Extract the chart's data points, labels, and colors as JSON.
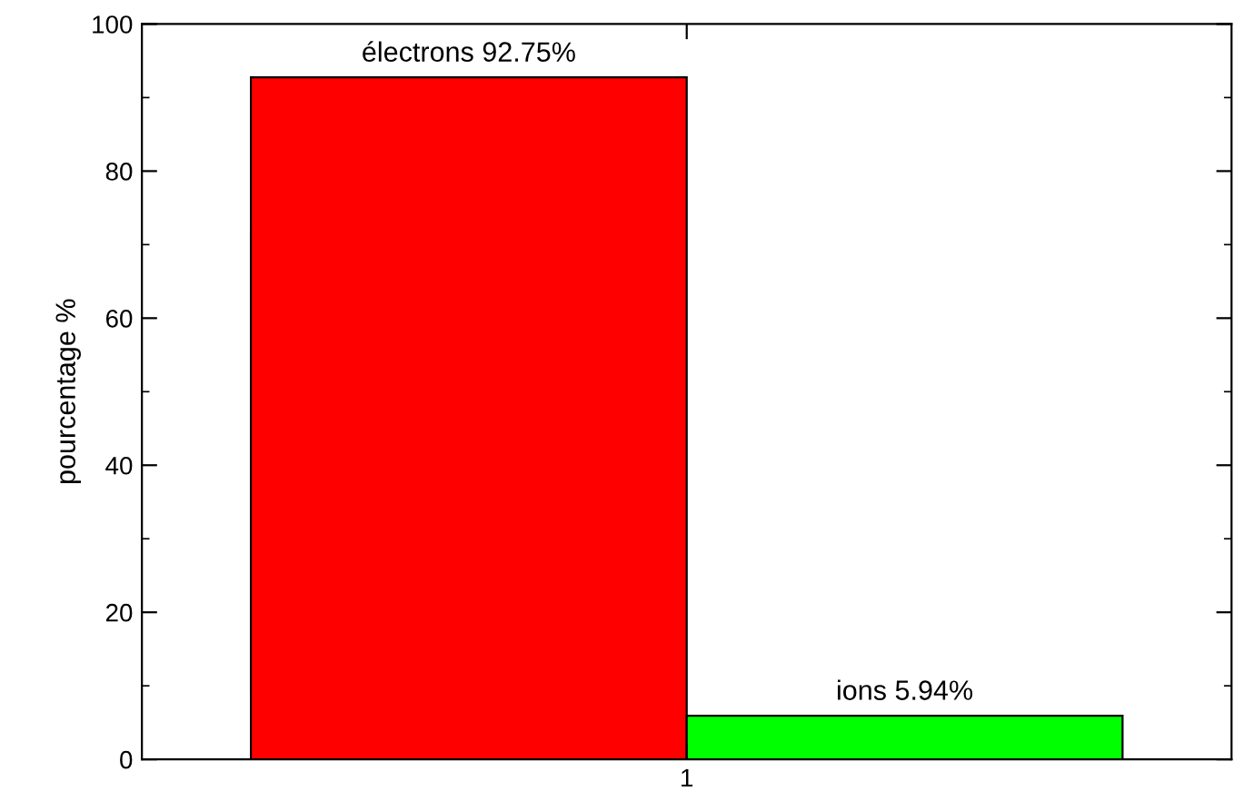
{
  "chart_data": {
    "type": "bar",
    "ylabel": "pourcentage %",
    "categories": [
      "1"
    ],
    "series": [
      {
        "color": "#ff0000",
        "values": [
          92.75
        ],
        "value_labels": [
          "électrons 92.75%"
        ]
      },
      {
        "color": "#00ff00",
        "values": [
          5.94
        ],
        "value_labels": [
          "ions 5.94%"
        ]
      }
    ],
    "ylim": [
      0,
      100
    ],
    "yticks": [
      0,
      20,
      40,
      60,
      80,
      100
    ],
    "grid": false,
    "legend": false
  }
}
